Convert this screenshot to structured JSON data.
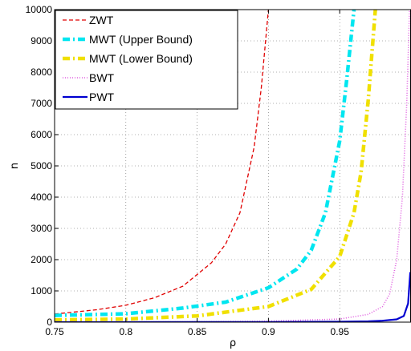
{
  "chart_data": {
    "type": "line",
    "xlabel": "ρ",
    "ylabel": "n",
    "xlim": [
      0.75,
      1.0
    ],
    "ylim": [
      0,
      10000
    ],
    "x_ticks": [
      "0.75",
      "0.8",
      "0.85",
      "0.9",
      "0.95"
    ],
    "y_ticks": [
      "0",
      "1000",
      "2000",
      "3000",
      "4000",
      "5000",
      "6000",
      "7000",
      "8000",
      "9000",
      "10000"
    ],
    "grid": true,
    "legend_position": "top-left",
    "series": [
      {
        "name": "ZWT",
        "color": "#e00000",
        "style": "dashed",
        "points": [
          [
            0.75,
            260
          ],
          [
            0.78,
            400
          ],
          [
            0.8,
            540
          ],
          [
            0.82,
            780
          ],
          [
            0.84,
            1150
          ],
          [
            0.86,
            1900
          ],
          [
            0.87,
            2500
          ],
          [
            0.88,
            3500
          ],
          [
            0.89,
            5600
          ],
          [
            0.895,
            7500
          ],
          [
            0.9,
            10000
          ]
        ]
      },
      {
        "name": "MWT (Upper Bound)",
        "color": "#00e6f0",
        "style": "dashdot",
        "points": [
          [
            0.75,
            215
          ],
          [
            0.78,
            245
          ],
          [
            0.8,
            270
          ],
          [
            0.84,
            450
          ],
          [
            0.87,
            640
          ],
          [
            0.9,
            1100
          ],
          [
            0.92,
            1700
          ],
          [
            0.93,
            2300
          ],
          [
            0.94,
            3500
          ],
          [
            0.95,
            5800
          ],
          [
            0.955,
            7800
          ],
          [
            0.96,
            10000
          ]
        ]
      },
      {
        "name": "MWT (Lower Bound)",
        "color": "#f0e000",
        "style": "dashdot",
        "points": [
          [
            0.75,
            70
          ],
          [
            0.8,
            100
          ],
          [
            0.85,
            200
          ],
          [
            0.9,
            500
          ],
          [
            0.93,
            1050
          ],
          [
            0.95,
            2100
          ],
          [
            0.96,
            3500
          ],
          [
            0.965,
            4800
          ],
          [
            0.97,
            7100
          ],
          [
            0.975,
            10000
          ]
        ]
      },
      {
        "name": "BWT",
        "color": "#e060e0",
        "style": "dotted",
        "points": [
          [
            0.75,
            2
          ],
          [
            0.85,
            10
          ],
          [
            0.9,
            30
          ],
          [
            0.95,
            100
          ],
          [
            0.97,
            250
          ],
          [
            0.98,
            500
          ],
          [
            0.985,
            900
          ],
          [
            0.99,
            2000
          ],
          [
            0.994,
            4000
          ],
          [
            0.997,
            7000
          ],
          [
            0.999,
            10000
          ]
        ]
      },
      {
        "name": "PWT",
        "color": "#0000d0",
        "style": "solid",
        "points": [
          [
            0.75,
            1
          ],
          [
            0.85,
            3
          ],
          [
            0.9,
            5
          ],
          [
            0.95,
            12
          ],
          [
            0.97,
            25
          ],
          [
            0.98,
            45
          ],
          [
            0.99,
            90
          ],
          [
            0.995,
            200
          ],
          [
            0.998,
            600
          ],
          [
            0.9995,
            1600
          ]
        ]
      }
    ]
  }
}
